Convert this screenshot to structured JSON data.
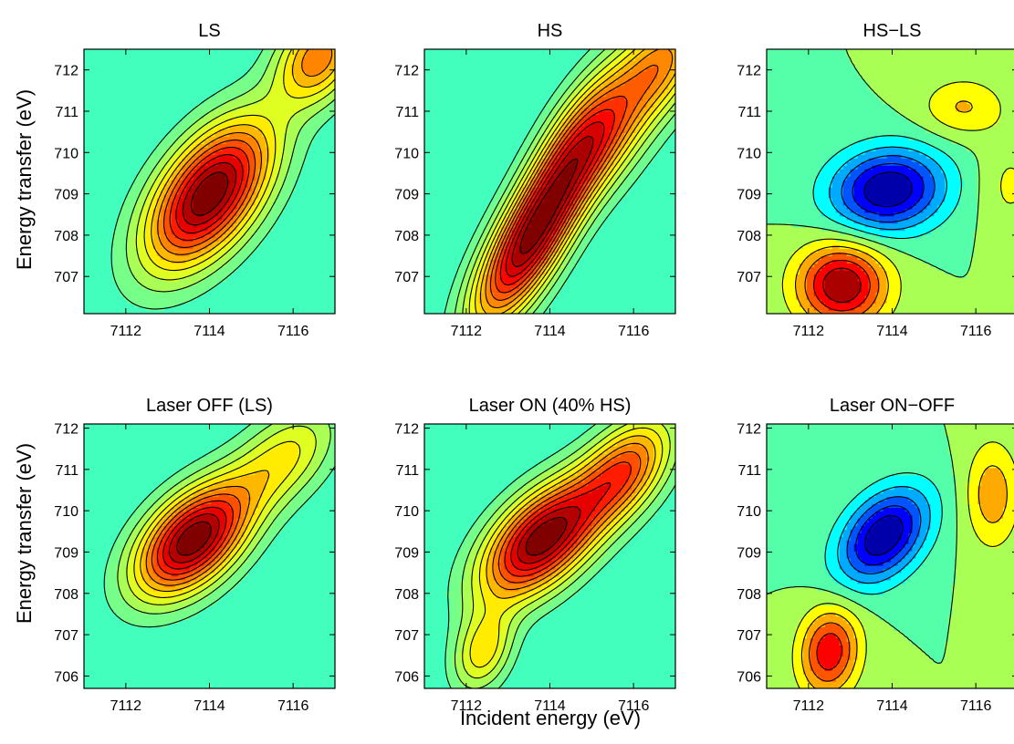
{
  "figure": {
    "xlabel": "Incident energy (eV)",
    "ylabel": "Energy transfer (eV)"
  },
  "chart_data": [
    {
      "type": "heatmap",
      "subtype": "filled-contour",
      "colormap": "jet",
      "title": "LS",
      "xlabel": "",
      "ylabel": "Energy transfer (eV)",
      "xlim": [
        7111,
        7117
      ],
      "ylim": [
        706.1,
        712.5
      ],
      "xticks": [
        7112,
        7114,
        7116
      ],
      "yticks": [
        707,
        708,
        709,
        710,
        711,
        712
      ],
      "levels": 12,
      "peaks": [
        {
          "x": 7114.0,
          "y": 709.0,
          "amp": 1.0,
          "sx": 1.05,
          "sy": 1.25,
          "rho": 0.55
        },
        {
          "x": 7116.6,
          "y": 712.3,
          "amp": 0.55,
          "sx": 0.7,
          "sy": 0.8,
          "rho": 0.3
        }
      ]
    },
    {
      "type": "heatmap",
      "subtype": "filled-contour",
      "colormap": "jet",
      "title": "HS",
      "xlabel": "",
      "ylabel": "",
      "xlim": [
        7111,
        7117
      ],
      "ylim": [
        706.1,
        712.5
      ],
      "xticks": [
        7112,
        7114,
        7116
      ],
      "yticks": [
        707,
        708,
        709,
        710,
        711,
        712
      ],
      "levels": 14,
      "peaks": [
        {
          "x": 7113.2,
          "y": 707.4,
          "amp": 0.9,
          "sx": 0.85,
          "sy": 1.3,
          "rho": 0.7
        },
        {
          "x": 7114.2,
          "y": 709.2,
          "amp": 0.85,
          "sx": 0.9,
          "sy": 1.6,
          "rho": 0.75
        },
        {
          "x": 7115.4,
          "y": 710.6,
          "amp": 0.72,
          "sx": 0.9,
          "sy": 1.2,
          "rho": 0.6
        },
        {
          "x": 7116.8,
          "y": 712.3,
          "amp": 0.6,
          "sx": 0.7,
          "sy": 0.9,
          "rho": 0.4
        }
      ]
    },
    {
      "type": "heatmap",
      "subtype": "filled-contour",
      "colormap": "jet",
      "title": "HS−LS",
      "xlabel": "",
      "ylabel": "",
      "xlim": [
        7111,
        7117
      ],
      "ylim": [
        706.1,
        712.5
      ],
      "xticks": [
        7112,
        7114,
        7116
      ],
      "yticks": [
        707,
        708,
        709,
        710,
        711,
        712
      ],
      "levels": 12,
      "diverging": true,
      "peaks": [
        {
          "x": 7113.9,
          "y": 709.1,
          "amp": -1.0,
          "sx": 0.95,
          "sy": 0.7,
          "rho": 0.1
        },
        {
          "x": 7112.8,
          "y": 706.8,
          "amp": 1.0,
          "sx": 0.75,
          "sy": 0.7,
          "rho": 0.0
        },
        {
          "x": 7115.7,
          "y": 711.1,
          "amp": 0.35,
          "sx": 0.7,
          "sy": 0.5,
          "rho": 0.0
        },
        {
          "x": 7116.8,
          "y": 709.2,
          "amp": 0.2,
          "sx": 0.5,
          "sy": 0.8,
          "rho": 0.0
        }
      ]
    },
    {
      "type": "heatmap",
      "subtype": "filled-contour",
      "colormap": "jet",
      "title": "Laser OFF (LS)",
      "xlabel": "",
      "ylabel": "Energy transfer (eV)",
      "xlim": [
        7111,
        7117
      ],
      "ylim": [
        705.7,
        712.1
      ],
      "xticks": [
        7112,
        7114,
        7116
      ],
      "yticks": [
        706,
        707,
        708,
        709,
        710,
        711,
        712
      ],
      "levels": 12,
      "peaks": [
        {
          "x": 7113.6,
          "y": 709.3,
          "amp": 1.0,
          "sx": 0.95,
          "sy": 0.95,
          "rho": 0.5
        },
        {
          "x": 7115.8,
          "y": 711.3,
          "amp": 0.35,
          "sx": 0.9,
          "sy": 0.9,
          "rho": 0.5
        }
      ]
    },
    {
      "type": "heatmap",
      "subtype": "filled-contour",
      "colormap": "jet",
      "title": "Laser ON (40% HS)",
      "xlabel": "Incident energy (eV)",
      "ylabel": "",
      "xlim": [
        7111,
        7117
      ],
      "ylim": [
        705.7,
        712.1
      ],
      "xticks": [
        7112,
        7114,
        7116
      ],
      "yticks": [
        706,
        707,
        708,
        709,
        710,
        711,
        712
      ],
      "levels": 12,
      "peaks": [
        {
          "x": 7113.8,
          "y": 709.3,
          "amp": 0.9,
          "sx": 1.0,
          "sy": 1.0,
          "rho": 0.55
        },
        {
          "x": 7115.8,
          "y": 711.0,
          "amp": 0.55,
          "sx": 0.8,
          "sy": 0.9,
          "rho": 0.5
        },
        {
          "x": 7112.4,
          "y": 706.6,
          "amp": 0.35,
          "sx": 0.5,
          "sy": 0.7,
          "rho": 0.3
        }
      ]
    },
    {
      "type": "heatmap",
      "subtype": "filled-contour",
      "colormap": "jet",
      "title": "Laser ON−OFF",
      "xlabel": "",
      "ylabel": "",
      "xlim": [
        7111,
        7117
      ],
      "ylim": [
        705.7,
        712.1
      ],
      "xticks": [
        7112,
        7114,
        7116
      ],
      "yticks": [
        706,
        707,
        708,
        709,
        710,
        711,
        712
      ],
      "levels": 12,
      "diverging": true,
      "peaks": [
        {
          "x": 7113.8,
          "y": 709.4,
          "amp": -1.0,
          "sx": 0.75,
          "sy": 0.8,
          "rho": 0.4
        },
        {
          "x": 7112.5,
          "y": 706.6,
          "amp": 0.8,
          "sx": 0.5,
          "sy": 0.75,
          "rho": 0.1
        },
        {
          "x": 7116.4,
          "y": 710.4,
          "amp": 0.45,
          "sx": 0.45,
          "sy": 0.9,
          "rho": 0.0
        }
      ]
    }
  ]
}
